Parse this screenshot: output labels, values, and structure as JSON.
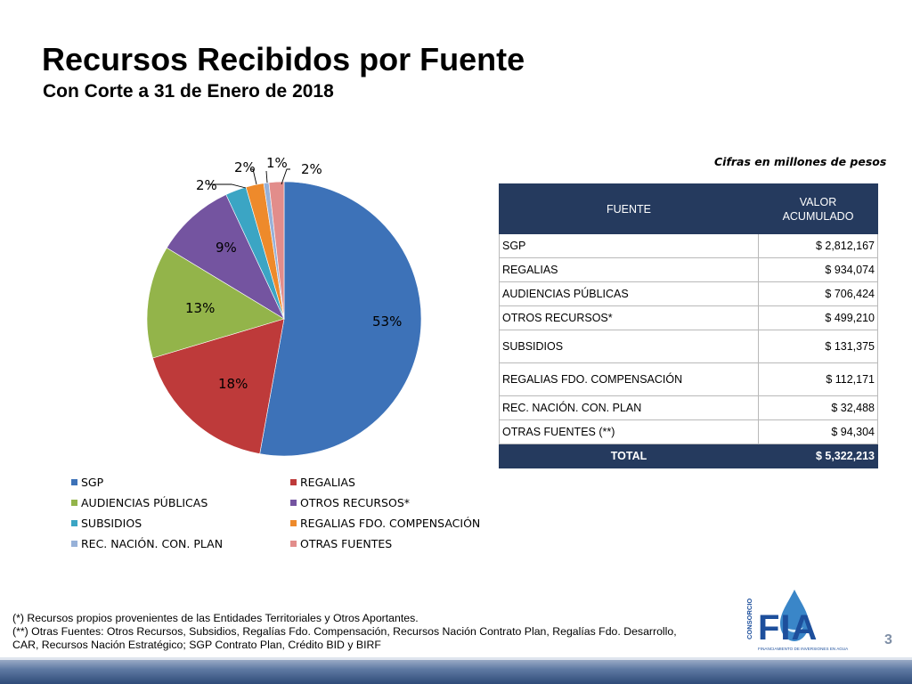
{
  "header": {
    "title": "Recursos Recibidos por Fuente",
    "subtitle": "Con Corte a 31 de Enero de 2018"
  },
  "chart_data": {
    "type": "pie",
    "categories": [
      "SGP",
      "REGALIAS",
      "AUDIENCIAS PÚBLICAS",
      "OTROS RECURSOS*",
      "SUBSIDIOS",
      "REGALIAS FDO. COMPENSACIÓN",
      "REC. NACIÓN.  CON. PLAN",
      "OTRAS FUENTES"
    ],
    "values": [
      2812167,
      934074,
      706424,
      499210,
      131375,
      112171,
      32488,
      94304
    ],
    "data_labels": [
      "53%",
      "18%",
      "13%",
      "9%",
      "2%",
      "2%",
      "1%",
      "2%"
    ],
    "colors": [
      "#3d72b8",
      "#be3a3a",
      "#93b44a",
      "#7454a0",
      "#3ba5c4",
      "#ee8a2b",
      "#97b1d8",
      "#e28d8b"
    ],
    "legend_position": "bottom",
    "title": "",
    "xlabel": "",
    "ylabel": ""
  },
  "table": {
    "caption": "Cifras en millones de pesos",
    "header_fuente": "FUENTE",
    "header_valor": "VALOR ACUMULADO",
    "rows": [
      {
        "fuente": "SGP",
        "valor": "$ 2,812,167"
      },
      {
        "fuente": "REGALIAS",
        "valor": "$ 934,074"
      },
      {
        "fuente": "AUDIENCIAS PÚBLICAS",
        "valor": "$ 706,424"
      },
      {
        "fuente": "OTROS RECURSOS*",
        "valor": "$ 499,210"
      },
      {
        "fuente": "SUBSIDIOS",
        "valor": "$ 131,375"
      },
      {
        "fuente": "REGALIAS FDO. COMPENSACIÓN",
        "valor": "$ 112,171"
      },
      {
        "fuente": "REC. NACIÓN.  CON. PLAN",
        "valor": "$ 32,488"
      },
      {
        "fuente": "OTRAS FUENTES (**)",
        "valor": "$ 94,304"
      }
    ],
    "total_label": "TOTAL",
    "total_value": "$ 5,322,213"
  },
  "notes": {
    "line1": "(*) Recursos propios provenientes de  las Entidades Territoriales y Otros Aportantes.",
    "line2": "(**) Otras Fuentes: Otros Recursos, Subsidios, Regalías Fdo. Compensación, Recursos Nación Contrato Plan, Regalías Fdo. Desarrollo,",
    "line3": "CAR, Recursos Nación Estratégico; SGP Contrato Plan, Crédito BID y BIRF"
  },
  "logo": {
    "text": "FIA",
    "vertical_text": "CONSORCIO",
    "tagline": "FINANCIAMIENTO DE INVERSIONES EN AGUA",
    "color": "#1d4f9c"
  },
  "page_number": "3"
}
